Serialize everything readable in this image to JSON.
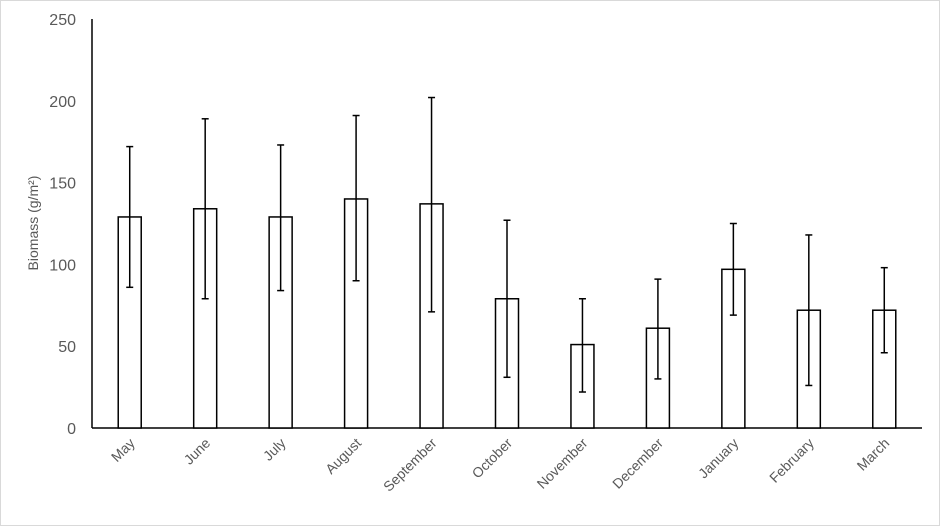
{
  "chart_data": {
    "type": "bar",
    "title": "",
    "xlabel": "",
    "ylabel": "Biomass (g/m²)",
    "ylim": [
      0,
      250
    ],
    "yticks": [
      0,
      50,
      100,
      150,
      200,
      250
    ],
    "grid": false,
    "categories": [
      "May",
      "June",
      "July",
      "August",
      "September",
      "October",
      "November",
      "December",
      "January",
      "February",
      "March"
    ],
    "values": [
      129,
      134,
      129,
      140,
      137,
      79,
      51,
      61,
      97,
      72,
      72
    ],
    "error_upper": [
      172,
      189,
      173,
      191,
      202,
      127,
      79,
      91,
      125,
      118,
      98
    ],
    "error_lower": [
      86,
      79,
      84,
      90,
      71,
      31,
      22,
      30,
      69,
      26,
      46
    ],
    "colors": {
      "bar_fill": "#ffffff",
      "bar_stroke": "#000000",
      "text": "#595959"
    }
  }
}
